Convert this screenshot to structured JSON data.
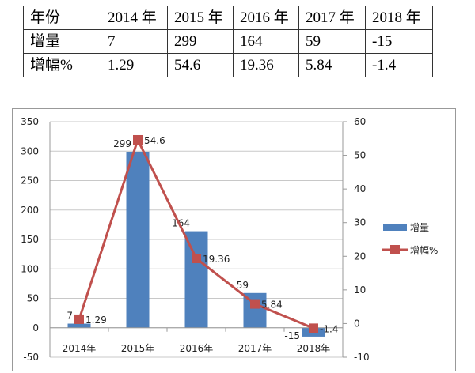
{
  "table": {
    "header": [
      "年份",
      "2014 年",
      "2015 年",
      "2016 年",
      "2017 年",
      "2018 年"
    ],
    "rows": [
      [
        "增量",
        "7",
        "299",
        "164",
        "59",
        "-15"
      ],
      [
        "增幅%",
        "1.29",
        "54.6",
        "19.36",
        "5.84",
        "-1.4"
      ]
    ]
  },
  "chart_data": {
    "type": "bar+line",
    "categories": [
      "2014年",
      "2015年",
      "2016年",
      "2017年",
      "2018年"
    ],
    "series": [
      {
        "name": "增量",
        "type": "bar",
        "axis": "left",
        "values": [
          7,
          299,
          164,
          59,
          -15
        ],
        "color": "#4f81bd"
      },
      {
        "name": "增幅%",
        "type": "line",
        "axis": "right",
        "values": [
          1.29,
          54.6,
          19.36,
          5.84,
          -1.4
        ],
        "color": "#c0504d"
      }
    ],
    "y_left": {
      "range": [
        -50,
        350
      ],
      "ticks": [
        -50,
        0,
        50,
        100,
        150,
        200,
        250,
        300,
        350
      ]
    },
    "y_right": {
      "range": [
        -10,
        60
      ],
      "ticks": [
        -10,
        0,
        10,
        20,
        30,
        40,
        50,
        60
      ]
    },
    "grid": true,
    "legend": "right",
    "data_labels": true
  }
}
